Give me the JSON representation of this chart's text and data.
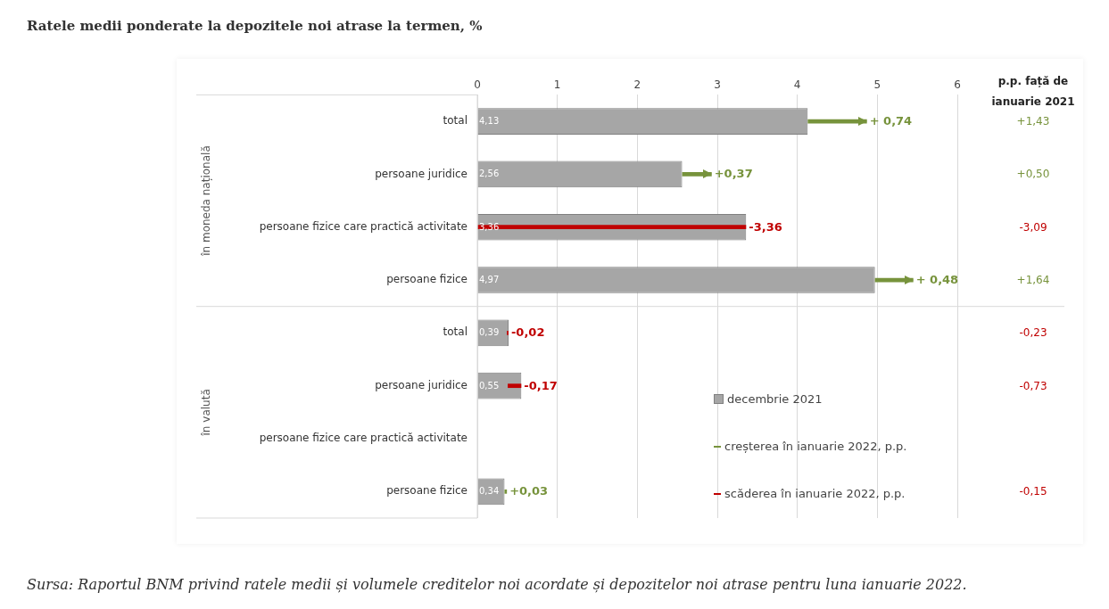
{
  "chart_data": {
    "type": "bar",
    "orientation": "horizontal",
    "title": "Ratele medii ponderate la depozitele noi atrase la termen, %",
    "categories": [
      "total",
      "persoane juridice",
      "persoane fizice care practică activitate",
      "persoane fizice",
      "total",
      "persoane juridice",
      "persoane fizice care practică activitate",
      "persoane fizice"
    ],
    "xlim": [
      0,
      6
    ],
    "xticks": [
      0,
      1,
      2,
      3,
      4,
      5,
      6
    ],
    "grid": "x",
    "legend": "bottom right",
    "series": [
      {
        "name": "decembrie 2021",
        "color": "#a6a6a6",
        "values": [
          4.13,
          2.56,
          3.36,
          4.97,
          0.39,
          0.55,
          null,
          0.34
        ],
        "value_labels": [
          "4,13",
          "2,56",
          "3,36",
          "4,97",
          "0,39",
          "0,55",
          null,
          "0,34"
        ]
      },
      {
        "name": "creșterea în ianuarie 2022, p.p.",
        "color": "#77933c",
        "base": [
          4.13,
          2.56,
          null,
          4.97,
          null,
          null,
          null,
          0.34
        ],
        "values": [
          0.74,
          0.37,
          null,
          0.48,
          null,
          null,
          null,
          0.03
        ],
        "value_labels": [
          "+ 0,74",
          "+0,37",
          null,
          "+ 0,48",
          null,
          null,
          null,
          "+0,03"
        ]
      },
      {
        "name": "scăderea în ianuarie 2022, p.p.",
        "color": "#c00000",
        "base": [
          null,
          null,
          3.36,
          null,
          0.39,
          0.55,
          null,
          null
        ],
        "values": [
          null,
          null,
          -3.36,
          null,
          -0.02,
          -0.17,
          null,
          null
        ],
        "value_labels": [
          null,
          null,
          "-3,36",
          null,
          "-0,02",
          "-0,17",
          null,
          null
        ]
      }
    ],
    "annotations": [
      "în moneda națională",
      "în valută",
      "p.p. față de ianuarie 2021",
      "+1,43",
      "+0,50",
      "-3,09",
      "+1,64",
      "-0,23",
      "-0,73",
      "-0,15",
      "Sursa: Raportul BNM privind ratele medii și volumele creditelor noi acordate și depozitelor noi atrase pentru luna ianuarie 2022."
    ]
  }
}
